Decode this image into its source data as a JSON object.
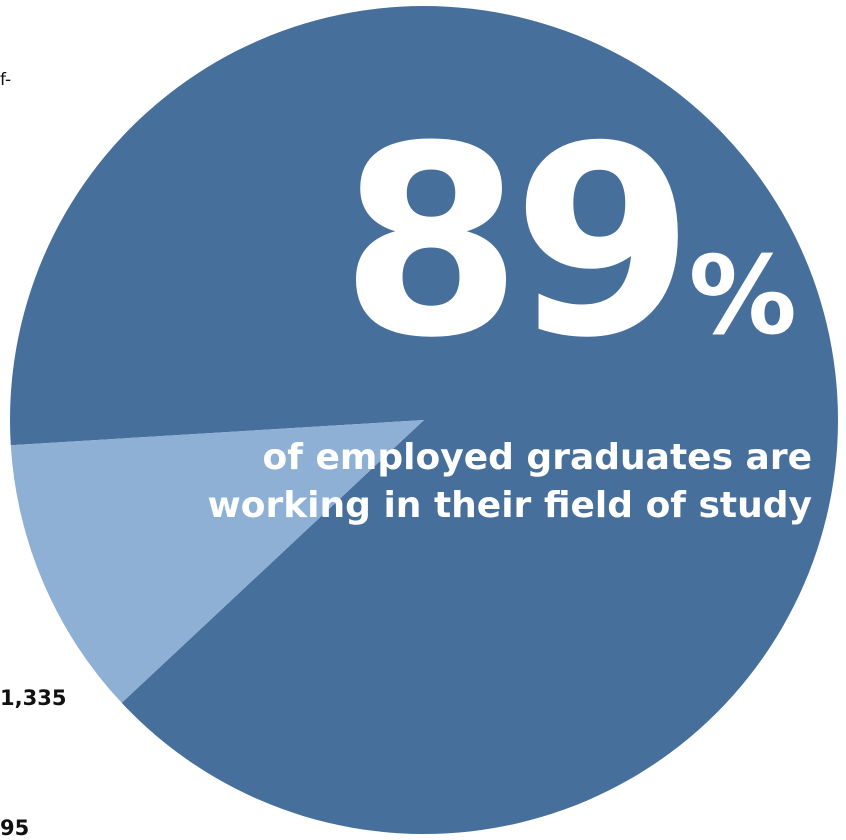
{
  "chart_data": {
    "type": "pie",
    "values": [
      89,
      11
    ],
    "colors": [
      "#476f9c",
      "#8eb0d4"
    ],
    "annotations": {
      "number": "89",
      "percent_sign": "%",
      "caption_line1": "of employed graduates are",
      "caption_line2": "working in their field of study"
    }
  },
  "fragments": {
    "top": "f-",
    "middle": "1,335",
    "bottom": "95"
  }
}
